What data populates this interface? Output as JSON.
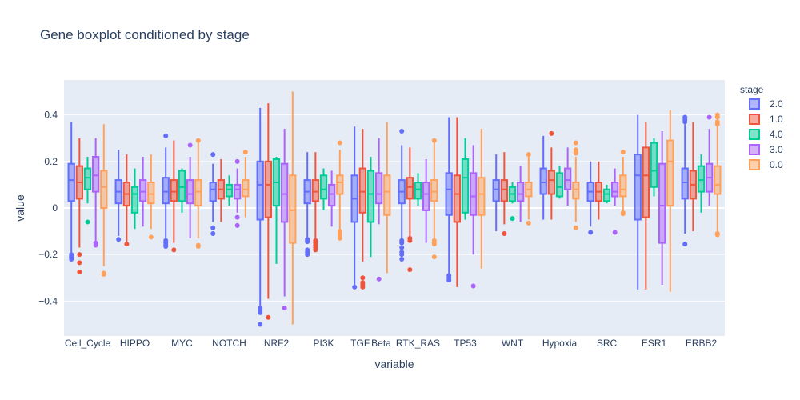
{
  "chart_data": {
    "type": "box",
    "title": "Gene boxplot conditioned by stage",
    "xlabel": "variable",
    "ylabel": "value",
    "ylim": [
      -0.55,
      0.55
    ],
    "yticks": [
      -0.4,
      -0.2,
      0,
      0.2,
      0.4
    ],
    "ytick_labels": [
      "−0.4",
      "−0.2",
      "0",
      "0.2",
      "0.4"
    ],
    "grid": true,
    "legend_position": "right",
    "legend_title": "stage",
    "categories": [
      "Cell_Cycle",
      "HIPPO",
      "MYC",
      "NOTCH",
      "NRF2",
      "PI3K",
      "TGF.Beta",
      "RTK_RAS",
      "TP53",
      "WNT",
      "Hypoxia",
      "SRC",
      "ESR1",
      "ERBB2"
    ],
    "series": [
      {
        "name": "2.0",
        "color": "#636efa",
        "boxes": [
          {
            "q1": 0.03,
            "median": 0.12,
            "q3": 0.19,
            "lower": -0.19,
            "upper": 0.37,
            "outliers": [
              -0.2,
              -0.21,
              -0.22
            ]
          },
          {
            "q1": 0.02,
            "median": 0.07,
            "q3": 0.12,
            "lower": -0.12,
            "upper": 0.25,
            "outliers": [
              -0.135
            ]
          },
          {
            "q1": 0.02,
            "median": 0.07,
            "q3": 0.13,
            "lower": -0.13,
            "upper": 0.26,
            "outliers": [
              0.31,
              -0.14,
              -0.15,
              -0.16,
              -0.165
            ]
          },
          {
            "q1": 0.03,
            "median": 0.08,
            "q3": 0.11,
            "lower": -0.06,
            "upper": 0.19,
            "outliers": [
              0.23,
              -0.085,
              -0.11
            ]
          },
          {
            "q1": -0.05,
            "median": 0.1,
            "q3": 0.2,
            "lower": -0.42,
            "upper": 0.43,
            "outliers": [
              -0.43,
              -0.44,
              -0.45,
              -0.5
            ]
          },
          {
            "q1": 0.02,
            "median": 0.07,
            "q3": 0.12,
            "lower": -0.13,
            "upper": 0.24,
            "outliers": [
              -0.135,
              -0.14,
              -0.145,
              -0.18,
              -0.19,
              -0.2
            ]
          },
          {
            "q1": -0.06,
            "median": 0.04,
            "q3": 0.14,
            "lower": -0.33,
            "upper": 0.35,
            "outliers": [
              -0.34
            ]
          },
          {
            "q1": 0.02,
            "median": 0.07,
            "q3": 0.12,
            "lower": -0.13,
            "upper": 0.27,
            "outliers": [
              0.33,
              -0.14,
              -0.15,
              -0.17,
              -0.19,
              -0.2,
              -0.22
            ]
          },
          {
            "q1": -0.03,
            "median": 0.08,
            "q3": 0.15,
            "lower": -0.28,
            "upper": 0.39,
            "outliers": [
              -0.29,
              -0.3,
              -0.31
            ]
          },
          {
            "q1": 0.03,
            "median": 0.08,
            "q3": 0.12,
            "lower": -0.1,
            "upper": 0.23,
            "outliers": []
          },
          {
            "q1": 0.06,
            "median": 0.11,
            "q3": 0.17,
            "lower": -0.05,
            "upper": 0.31,
            "outliers": []
          },
          {
            "q1": 0.03,
            "median": 0.07,
            "q3": 0.11,
            "lower": -0.08,
            "upper": 0.2,
            "outliers": [
              -0.105
            ]
          },
          {
            "q1": -0.05,
            "median": 0.14,
            "q3": 0.23,
            "lower": -0.35,
            "upper": 0.4,
            "outliers": []
          },
          {
            "q1": 0.04,
            "median": 0.11,
            "q3": 0.17,
            "lower": -0.11,
            "upper": 0.36,
            "outliers": [
              0.37,
              0.38,
              0.39,
              -0.155
            ]
          }
        ]
      },
      {
        "name": "1.0",
        "color": "#ef553b",
        "boxes": [
          {
            "q1": 0.04,
            "median": 0.11,
            "q3": 0.18,
            "lower": -0.17,
            "upper": 0.3,
            "outliers": [
              -0.2,
              -0.235,
              -0.275
            ]
          },
          {
            "q1": 0.01,
            "median": 0.06,
            "q3": 0.11,
            "lower": -0.15,
            "upper": 0.23,
            "outliers": [
              -0.155
            ]
          },
          {
            "q1": 0.03,
            "median": 0.07,
            "q3": 0.12,
            "lower": -0.15,
            "upper": 0.29,
            "outliers": [
              -0.18
            ]
          },
          {
            "q1": 0.04,
            "median": 0.08,
            "q3": 0.12,
            "lower": -0.06,
            "upper": 0.21,
            "outliers": []
          },
          {
            "q1": -0.04,
            "median": 0.1,
            "q3": 0.2,
            "lower": -0.39,
            "upper": 0.45,
            "outliers": [
              -0.47
            ]
          },
          {
            "q1": 0.03,
            "median": 0.07,
            "q3": 0.12,
            "lower": -0.13,
            "upper": 0.24,
            "outliers": [
              -0.14,
              -0.15,
              -0.16,
              -0.17,
              -0.18
            ]
          },
          {
            "q1": -0.02,
            "median": 0.07,
            "q3": 0.17,
            "lower": -0.23,
            "upper": 0.34,
            "outliers": [
              -0.3,
              -0.32,
              -0.33,
              -0.34
            ]
          },
          {
            "q1": 0.04,
            "median": 0.09,
            "q3": 0.13,
            "lower": -0.12,
            "upper": 0.26,
            "outliers": [
              -0.13,
              -0.14,
              -0.265
            ]
          },
          {
            "q1": -0.06,
            "median": 0.06,
            "q3": 0.14,
            "lower": -0.34,
            "upper": 0.39,
            "outliers": []
          },
          {
            "q1": 0.03,
            "median": 0.08,
            "q3": 0.12,
            "lower": -0.07,
            "upper": 0.24,
            "outliers": [
              -0.11
            ]
          },
          {
            "q1": 0.06,
            "median": 0.12,
            "q3": 0.16,
            "lower": -0.05,
            "upper": 0.26,
            "outliers": [
              0.32
            ]
          },
          {
            "q1": 0.03,
            "median": 0.07,
            "q3": 0.11,
            "lower": -0.05,
            "upper": 0.2,
            "outliers": []
          },
          {
            "q1": -0.04,
            "median": 0.14,
            "q3": 0.26,
            "lower": -0.35,
            "upper": 0.37,
            "outliers": []
          },
          {
            "q1": 0.04,
            "median": 0.1,
            "q3": 0.16,
            "lower": -0.1,
            "upper": 0.37,
            "outliers": []
          }
        ]
      },
      {
        "name": "4.0",
        "color": "#00cc96",
        "boxes": [
          {
            "q1": 0.08,
            "median": 0.13,
            "q3": 0.17,
            "lower": 0.02,
            "upper": 0.22,
            "outliers": [
              -0.06
            ]
          },
          {
            "q1": -0.02,
            "median": 0.06,
            "q3": 0.09,
            "lower": -0.09,
            "upper": 0.17,
            "outliers": []
          },
          {
            "q1": 0.03,
            "median": 0.09,
            "q3": 0.16,
            "lower": -0.02,
            "upper": 0.17,
            "outliers": []
          },
          {
            "q1": 0.05,
            "median": 0.08,
            "q3": 0.1,
            "lower": 0.01,
            "upper": 0.14,
            "outliers": []
          },
          {
            "q1": 0.01,
            "median": 0.11,
            "q3": 0.21,
            "lower": -0.24,
            "upper": 0.22,
            "outliers": []
          },
          {
            "q1": 0.04,
            "median": 0.08,
            "q3": 0.14,
            "lower": -0.01,
            "upper": 0.17,
            "outliers": []
          },
          {
            "q1": -0.06,
            "median": 0.06,
            "q3": 0.16,
            "lower": -0.21,
            "upper": 0.22,
            "outliers": []
          },
          {
            "q1": 0.04,
            "median": 0.08,
            "q3": 0.11,
            "lower": 0.01,
            "upper": 0.15,
            "outliers": []
          },
          {
            "q1": -0.02,
            "median": 0.13,
            "q3": 0.21,
            "lower": -0.05,
            "upper": 0.3,
            "outliers": []
          },
          {
            "q1": 0.03,
            "median": 0.06,
            "q3": 0.09,
            "lower": 0.02,
            "upper": 0.11,
            "outliers": [
              -0.045
            ]
          },
          {
            "q1": 0.05,
            "median": 0.09,
            "q3": 0.15,
            "lower": 0.04,
            "upper": 0.18,
            "outliers": []
          },
          {
            "q1": 0.03,
            "median": 0.06,
            "q3": 0.08,
            "lower": 0.02,
            "upper": 0.1,
            "outliers": []
          },
          {
            "q1": 0.09,
            "median": 0.16,
            "q3": 0.28,
            "lower": 0.05,
            "upper": 0.3,
            "outliers": []
          },
          {
            "q1": 0.07,
            "median": 0.12,
            "q3": 0.18,
            "lower": -0.02,
            "upper": 0.23,
            "outliers": []
          }
        ]
      },
      {
        "name": "3.0",
        "color": "#ab63fa",
        "boxes": [
          {
            "q1": 0.07,
            "median": 0.14,
            "q3": 0.22,
            "lower": -0.14,
            "upper": 0.3,
            "outliers": [
              -0.15,
              -0.16
            ]
          },
          {
            "q1": 0.03,
            "median": 0.07,
            "q3": 0.12,
            "lower": -0.08,
            "upper": 0.22,
            "outliers": []
          },
          {
            "q1": 0.02,
            "median": 0.06,
            "q3": 0.12,
            "lower": -0.13,
            "upper": 0.22,
            "outliers": [
              0.27
            ]
          },
          {
            "q1": 0.04,
            "median": 0.08,
            "q3": 0.1,
            "lower": -0.02,
            "upper": 0.17,
            "outliers": [
              0.2,
              -0.04,
              -0.075
            ]
          },
          {
            "q1": -0.06,
            "median": 0.06,
            "q3": 0.19,
            "lower": -0.38,
            "upper": 0.34,
            "outliers": [
              -0.43
            ]
          },
          {
            "q1": 0.01,
            "median": 0.06,
            "q3": 0.1,
            "lower": -0.08,
            "upper": 0.16,
            "outliers": []
          },
          {
            "q1": 0.02,
            "median": 0.06,
            "q3": 0.15,
            "lower": -0.07,
            "upper": 0.3,
            "outliers": [
              -0.305
            ]
          },
          {
            "q1": -0.01,
            "median": 0.06,
            "q3": 0.11,
            "lower": -0.15,
            "upper": 0.21,
            "outliers": []
          },
          {
            "q1": -0.03,
            "median": 0.05,
            "q3": 0.15,
            "lower": -0.2,
            "upper": 0.27,
            "outliers": [
              -0.335
            ]
          },
          {
            "q1": 0.03,
            "median": 0.06,
            "q3": 0.11,
            "lower": -0.06,
            "upper": 0.18,
            "outliers": []
          },
          {
            "q1": 0.08,
            "median": 0.12,
            "q3": 0.17,
            "lower": 0.01,
            "upper": 0.26,
            "outliers": []
          },
          {
            "q1": 0.05,
            "median": 0.07,
            "q3": 0.11,
            "lower": 0.01,
            "upper": 0.17,
            "outliers": [
              -0.105
            ]
          },
          {
            "q1": -0.15,
            "median": 0.01,
            "q3": 0.19,
            "lower": -0.33,
            "upper": 0.33,
            "outliers": []
          },
          {
            "q1": 0.07,
            "median": 0.13,
            "q3": 0.19,
            "lower": 0.01,
            "upper": 0.34,
            "outliers": [
              0.39
            ]
          }
        ]
      },
      {
        "name": "0.0",
        "color": "#ffa15a",
        "boxes": [
          {
            "q1": 0.0,
            "median": 0.09,
            "q3": 0.16,
            "lower": -0.25,
            "upper": 0.36,
            "outliers": [
              -0.28,
              -0.285
            ]
          },
          {
            "q1": 0.02,
            "median": 0.06,
            "q3": 0.11,
            "lower": -0.09,
            "upper": 0.23,
            "outliers": [
              -0.125
            ]
          },
          {
            "q1": 0.01,
            "median": 0.07,
            "q3": 0.12,
            "lower": -0.13,
            "upper": 0.28,
            "outliers": [
              0.29,
              -0.16,
              -0.165
            ]
          },
          {
            "q1": 0.05,
            "median": 0.08,
            "q3": 0.12,
            "lower": -0.04,
            "upper": 0.22,
            "outliers": [
              0.24
            ]
          },
          {
            "q1": -0.15,
            "median": -0.01,
            "q3": 0.14,
            "lower": -0.5,
            "upper": 0.5,
            "outliers": []
          },
          {
            "q1": 0.06,
            "median": 0.11,
            "q3": 0.14,
            "lower": -0.1,
            "upper": 0.25,
            "outliers": [
              0.28,
              -0.1,
              -0.11,
              -0.12,
              -0.13
            ]
          },
          {
            "q1": -0.03,
            "median": 0.07,
            "q3": 0.14,
            "lower": -0.28,
            "upper": 0.37,
            "outliers": []
          },
          {
            "q1": 0.03,
            "median": 0.07,
            "q3": 0.12,
            "lower": -0.14,
            "upper": 0.28,
            "outliers": [
              0.29,
              -0.14,
              -0.15,
              -0.155,
              -0.21
            ]
          },
          {
            "q1": -0.03,
            "median": 0.06,
            "q3": 0.13,
            "lower": -0.26,
            "upper": 0.34,
            "outliers": []
          },
          {
            "q1": 0.05,
            "median": 0.08,
            "q3": 0.11,
            "lower": -0.05,
            "upper": 0.22,
            "outliers": [
              0.23,
              -0.065
            ]
          },
          {
            "q1": 0.04,
            "median": 0.08,
            "q3": 0.11,
            "lower": -0.06,
            "upper": 0.22,
            "outliers": [
              0.28,
              0.25,
              0.24,
              0.235,
              -0.085
            ]
          },
          {
            "q1": 0.05,
            "median": 0.08,
            "q3": 0.14,
            "lower": -0.02,
            "upper": 0.22,
            "outliers": [
              0.24,
              -0.02,
              -0.025
            ]
          },
          {
            "q1": 0.01,
            "median": 0.2,
            "q3": 0.29,
            "lower": -0.36,
            "upper": 0.42,
            "outliers": []
          },
          {
            "q1": 0.06,
            "median": 0.1,
            "q3": 0.18,
            "lower": -0.1,
            "upper": 0.37,
            "outliers": [
              0.4,
              0.39,
              0.37,
              0.36,
              -0.11,
              -0.115
            ]
          }
        ]
      }
    ]
  }
}
